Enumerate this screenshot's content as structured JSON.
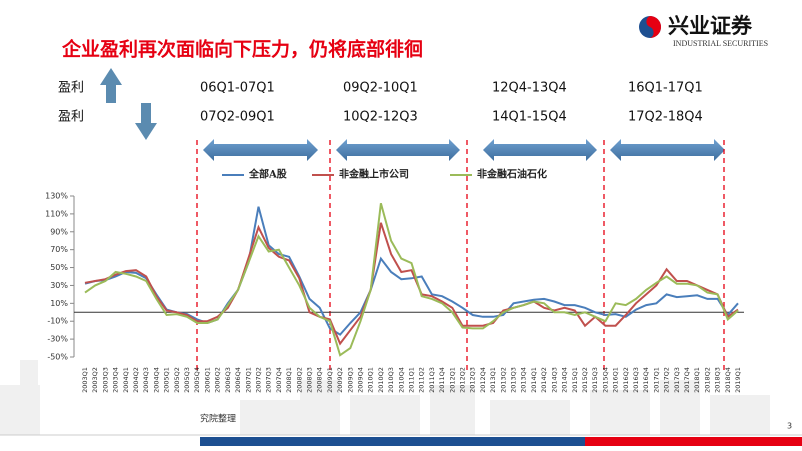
{
  "title": "企业盈利再次面临向下压力，仍将底部徘徊",
  "logo": {
    "name": "兴业证券",
    "subtitle": "INDUSTRIAL SECURITIES"
  },
  "rows": [
    {
      "label": "盈利",
      "periods": [
        "06Q1-07Q1",
        "09Q2-10Q1",
        "12Q4-13Q4",
        "16Q1-17Q1"
      ]
    },
    {
      "label": "盈利",
      "periods": [
        "07Q2-09Q1",
        "10Q2-12Q3",
        "14Q1-15Q4",
        "17Q2-18Q4"
      ]
    }
  ],
  "source": "究院整理",
  "page_number": "3",
  "chart_data": {
    "type": "line",
    "categories": [
      "2003Q1",
      "2003Q2",
      "2003Q3",
      "2003Q4",
      "2004Q1",
      "2004Q2",
      "2004Q3",
      "2004Q4",
      "2005Q1",
      "2005Q2",
      "2005Q3",
      "2005Q4",
      "2006Q1",
      "2006Q2",
      "2006Q3",
      "2006Q4",
      "2007Q1",
      "2007Q2",
      "2007Q3",
      "2007Q4",
      "2008Q1",
      "2008Q2",
      "2008Q3",
      "2008Q4",
      "2009Q1",
      "2009Q2",
      "2009Q3",
      "2009Q4",
      "2010Q1",
      "2010Q2",
      "2010Q3",
      "2010Q4",
      "2011Q1",
      "2011Q2",
      "2011Q3",
      "2011Q4",
      "2012Q1",
      "2012Q2",
      "2012Q3",
      "2012Q4",
      "2013Q1",
      "2013Q2",
      "2013Q3",
      "2013Q4",
      "2014Q1",
      "2014Q2",
      "2014Q3",
      "2014Q4",
      "2015Q1",
      "2015Q2",
      "2015Q3",
      "2015Q4",
      "2016Q1",
      "2016Q2",
      "2016Q3",
      "2016Q4",
      "2017Q1",
      "2017Q2",
      "2017Q3",
      "2017Q4",
      "2018Q1",
      "2018Q2",
      "2018Q3",
      "2018Q4",
      "2019Q1"
    ],
    "series": [
      {
        "name": "全部A股",
        "color": "#4a7ebb",
        "values": [
          32,
          35,
          36,
          40,
          45,
          44,
          38,
          20,
          3,
          0,
          -2,
          -8,
          -12,
          -8,
          10,
          25,
          55,
          118,
          75,
          65,
          62,
          40,
          15,
          5,
          -18,
          -25,
          -12,
          0,
          25,
          60,
          45,
          37,
          38,
          40,
          20,
          18,
          12,
          5,
          -3,
          -5,
          -5,
          -3,
          10,
          12,
          14,
          15,
          12,
          8,
          8,
          5,
          0,
          -3,
          -2,
          -5,
          3,
          8,
          10,
          20,
          17,
          18,
          19,
          15,
          15,
          -3,
          10
        ]
      },
      {
        "name": "非金融上市公司",
        "color": "#c0504d",
        "values": [
          33,
          35,
          37,
          42,
          46,
          47,
          40,
          18,
          2,
          0,
          -3,
          -10,
          -10,
          -5,
          5,
          25,
          60,
          95,
          72,
          62,
          58,
          38,
          0,
          -5,
          -8,
          -35,
          -20,
          -5,
          25,
          100,
          65,
          45,
          47,
          20,
          18,
          12,
          5,
          -15,
          -15,
          -15,
          -12,
          2,
          5,
          8,
          12,
          5,
          2,
          5,
          2,
          -15,
          -5,
          -15,
          -15,
          -3,
          10,
          20,
          30,
          48,
          35,
          35,
          30,
          25,
          20,
          -5,
          3
        ]
      },
      {
        "name": "非金融石油石化",
        "color": "#9bbb59",
        "values": [
          22,
          30,
          35,
          45,
          43,
          40,
          35,
          15,
          -3,
          -2,
          -5,
          -12,
          -12,
          -8,
          8,
          25,
          55,
          85,
          68,
          70,
          50,
          30,
          5,
          -5,
          -10,
          -48,
          -40,
          -10,
          25,
          122,
          80,
          60,
          55,
          18,
          15,
          10,
          0,
          -17,
          -18,
          -18,
          -10,
          0,
          5,
          8,
          12,
          10,
          0,
          0,
          -3,
          0,
          -5,
          -10,
          10,
          8,
          15,
          25,
          33,
          40,
          32,
          32,
          30,
          22,
          20,
          -8,
          2
        ]
      }
    ],
    "ylim": [
      -50,
      130
    ],
    "yticks": [
      {
        "value": -50,
        "label": "-50%"
      },
      {
        "value": -30,
        "label": "-30%"
      },
      {
        "value": -10,
        "label": "-10%"
      },
      {
        "value": 10,
        "label": "10%"
      },
      {
        "value": 30,
        "label": "30%"
      },
      {
        "value": 50,
        "label": "50%"
      },
      {
        "value": 70,
        "label": "70%"
      },
      {
        "value": 90,
        "label": "90%"
      },
      {
        "value": 110,
        "label": "110%"
      },
      {
        "value": 130,
        "label": "130%"
      }
    ]
  }
}
